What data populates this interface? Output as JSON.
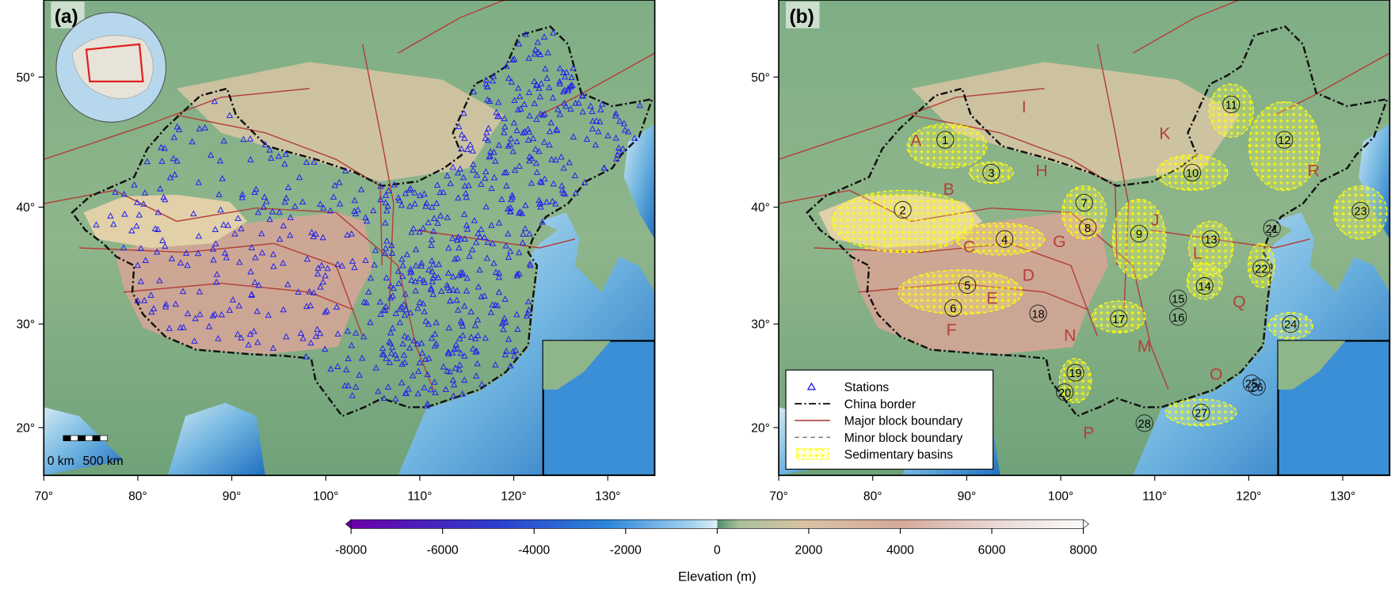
{
  "panels": [
    {
      "label": "(a)",
      "xlim": [
        70,
        135
      ],
      "xticks": [
        {
          "value": 70,
          "label": "70°"
        },
        {
          "value": 80,
          "label": "80°"
        },
        {
          "value": 90,
          "label": "90°"
        },
        {
          "value": 100,
          "label": "100°"
        },
        {
          "value": 110,
          "label": "110°"
        },
        {
          "value": 120,
          "label": "120°"
        },
        {
          "value": 130,
          "label": "130°"
        }
      ],
      "yticks": [
        {
          "value": 20,
          "label": "20°"
        },
        {
          "value": 30,
          "label": "30°"
        },
        {
          "value": 40,
          "label": "40°"
        },
        {
          "value": 50,
          "label": "50°"
        }
      ],
      "scale_bar": [
        "0 km",
        "500 km"
      ]
    },
    {
      "label": "(b)",
      "xlim": [
        70,
        135
      ],
      "xticks": [
        {
          "value": 70,
          "label": "70°"
        },
        {
          "value": 80,
          "label": "80°"
        },
        {
          "value": 90,
          "label": "90°"
        },
        {
          "value": 100,
          "label": "100°"
        },
        {
          "value": 110,
          "label": "110°"
        },
        {
          "value": 120,
          "label": "120°"
        },
        {
          "value": 130,
          "label": "130°"
        }
      ],
      "yticks": [
        {
          "value": 20,
          "label": "20°"
        },
        {
          "value": 30,
          "label": "30°"
        },
        {
          "value": 40,
          "label": "40°"
        },
        {
          "value": 50,
          "label": "50°"
        }
      ],
      "blocks": [
        "A",
        "B",
        "C",
        "D",
        "E",
        "F",
        "G",
        "H",
        "I",
        "J",
        "K",
        "L",
        "M",
        "N",
        "O",
        "P",
        "Q",
        "R"
      ],
      "basins": [
        "1",
        "2",
        "3",
        "4",
        "5",
        "6",
        "7",
        "8",
        "9",
        "10",
        "11",
        "12",
        "13",
        "14",
        "15",
        "16",
        "17",
        "18",
        "19",
        "20",
        "21",
        "22",
        "23",
        "24",
        "25",
        "26",
        "27",
        "28"
      ],
      "legend": [
        "Stations",
        "China border",
        "Major block boundary",
        "Minor block boundary",
        "Sedimentary basins"
      ]
    }
  ],
  "colorbar": {
    "title": "Elevation (m)",
    "lim": [
      -8000,
      8000
    ],
    "ticks": [
      -8000,
      -6000,
      -4000,
      -2000,
      0,
      2000,
      4000,
      6000,
      8000
    ]
  }
}
